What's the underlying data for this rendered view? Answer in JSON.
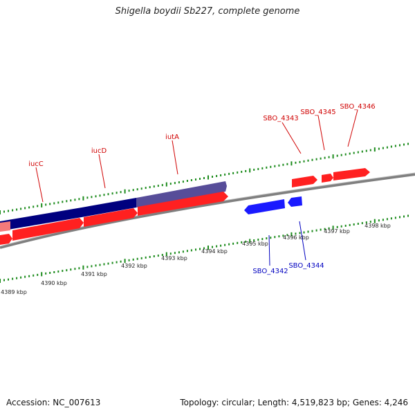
{
  "title": "Shigella boydii Sb227, complete genome",
  "footer": {
    "accession": "Accession: NC_007613",
    "summary": "Topology: circular; Length: 4,519,823 bp; Genes: 4,246"
  },
  "colors": {
    "backbone": "#8c8c8c",
    "tick": "#1a8a1a",
    "forward_gene": "#ff2020",
    "reverse_gene": "#1a1aff",
    "operon_dark": "#00007f",
    "operon_light": "#5a4f9a",
    "forward_label": "#d00000",
    "reverse_label": "#0000c0"
  },
  "map": {
    "kbp_labels": [
      "4389 kbp",
      "4390 kbp",
      "4391 kbp",
      "4392 kbp",
      "4393 kbp",
      "4394 kbp",
      "4395 kbp",
      "4396 kbp",
      "4397 kbp",
      "4398 kbp"
    ],
    "forward_labels": [
      "iucC",
      "iucD",
      "iutA",
      "SBO_4343",
      "SBO_4345",
      "SBO_4346"
    ],
    "reverse_labels": [
      "SBO_4342",
      "SBO_4344"
    ]
  }
}
